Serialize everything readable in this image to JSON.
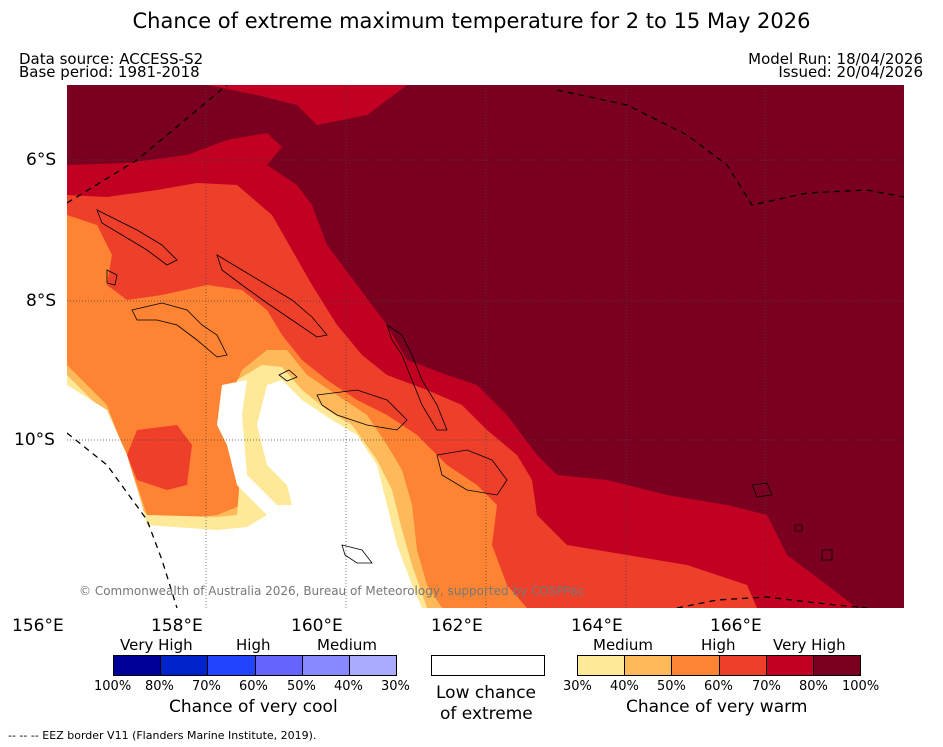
{
  "title": "Chance of extreme maximum temperature for 2 to 15 May 2026",
  "data_source": "Data source: ACCESS-S2",
  "base_period": "Base period: 1981-2018",
  "model_run": "Model Run: 18/04/2026",
  "issued": "Issued: 20/04/2026",
  "map": {
    "lat_labels": [
      "6°S",
      "8°S",
      "10°S"
    ],
    "lon_labels": [
      "156°E",
      "158°E",
      "160°E",
      "162°E",
      "164°E",
      "166°E"
    ],
    "copyright": "© Commonwealth of Australia 2026, Bureau of Meteorology, supported by COSPPac",
    "region": "Solomon Islands"
  },
  "legend_cool": {
    "levels": [
      "Very High",
      "High",
      "Medium"
    ],
    "colors": [
      "#000099",
      "#0022cc",
      "#2244ff",
      "#6666ff",
      "#8888ff",
      "#aaaaff"
    ],
    "percents": [
      "100%",
      "80%",
      "70%",
      "60%",
      "50%",
      "40%",
      "30%"
    ],
    "caption": "Chance of very cool"
  },
  "legend_low": {
    "caption_line1": "Low chance",
    "caption_line2": "of extreme",
    "color": "#ffffff"
  },
  "legend_warm": {
    "levels": [
      "Medium",
      "High",
      "Very High"
    ],
    "colors": [
      "#fee999",
      "#feb95a",
      "#fe8433",
      "#ee3f2a",
      "#c20022",
      "#7b0020"
    ],
    "percents": [
      "30%",
      "40%",
      "50%",
      "60%",
      "70%",
      "80%",
      "100%"
    ],
    "caption": "Chance of very warm"
  },
  "footnote": "--  --  -- EEZ border V11 (Flanders Marine Institute, 2019)."
}
